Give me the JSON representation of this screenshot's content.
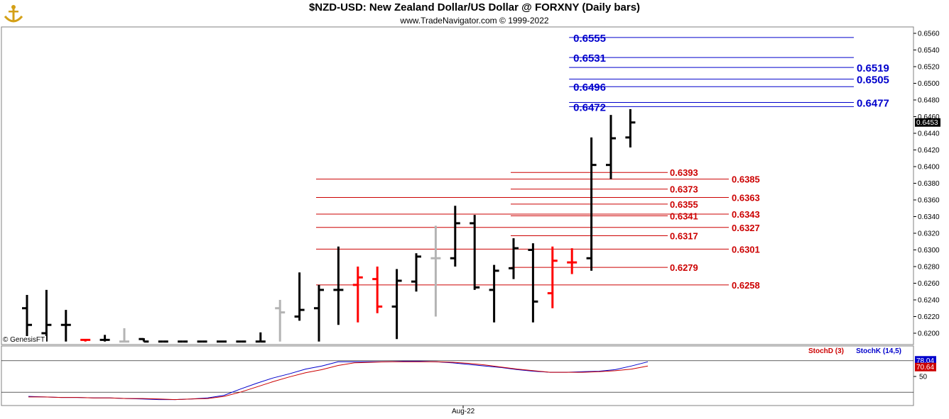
{
  "header": {
    "title": "$NZD-USD:  New Zealand Dollar/US Dollar @ FORXNY  (Daily bars)",
    "subtitle": "www.TradeNavigator.com © 1999-2022",
    "copyright": "© GenesisFT",
    "x_tick": "Aug-22"
  },
  "colors": {
    "up": "#000000",
    "down": "#ff0000",
    "neutral": "#b4b4b4",
    "resistance": "#0000cc",
    "support": "#cc0000",
    "stoch_k": "#0000cc",
    "stoch_d": "#cc0000"
  },
  "chart_data": [
    {
      "type": "ohlc",
      "title": "$NZD-USD:  New Zealand Dollar/US Dollar @ FORXNY  (Daily bars)",
      "ylim": [
        0.619,
        0.6565
      ],
      "y_ticks": [
        "0.6200",
        "0.6220",
        "0.6240",
        "0.6260",
        "0.6280",
        "0.6300",
        "0.6320",
        "0.6340",
        "0.6360",
        "0.6380",
        "0.6400",
        "0.6420",
        "0.6440",
        "0.6460",
        "0.6480",
        "0.6500",
        "0.6520",
        "0.6540",
        "0.6560"
      ],
      "last_price": "0.6453",
      "bars": [
        {
          "open": 0.623,
          "high": 0.6246,
          "low": 0.619,
          "close": 0.621,
          "color": "up"
        },
        {
          "open": 0.62,
          "high": 0.6252,
          "low": 0.619,
          "close": 0.621,
          "color": "up"
        },
        {
          "open": 0.621,
          "high": 0.6228,
          "low": 0.619,
          "close": 0.621,
          "color": "up"
        },
        {
          "open": 0.6192,
          "high": 0.6193,
          "low": 0.619,
          "close": 0.6192,
          "color": "down"
        },
        {
          "open": 0.6192,
          "high": 0.6198,
          "low": 0.619,
          "close": 0.6192,
          "color": "up"
        },
        {
          "open": 0.619,
          "high": 0.6206,
          "low": 0.619,
          "close": 0.619,
          "color": "neutral"
        },
        {
          "open": 0.6193,
          "high": 0.6194,
          "low": 0.619,
          "close": 0.619,
          "color": "up"
        },
        {
          "open": 0.619,
          "high": 0.619,
          "low": 0.619,
          "close": 0.619,
          "color": "up"
        },
        {
          "open": 0.619,
          "high": 0.619,
          "low": 0.619,
          "close": 0.619,
          "color": "up"
        },
        {
          "open": 0.619,
          "high": 0.619,
          "low": 0.619,
          "close": 0.619,
          "color": "up"
        },
        {
          "open": 0.619,
          "high": 0.619,
          "low": 0.619,
          "close": 0.619,
          "color": "up"
        },
        {
          "open": 0.619,
          "high": 0.619,
          "low": 0.619,
          "close": 0.619,
          "color": "up"
        },
        {
          "open": 0.619,
          "high": 0.6201,
          "low": 0.619,
          "close": 0.619,
          "color": "up"
        },
        {
          "open": 0.623,
          "high": 0.624,
          "low": 0.619,
          "close": 0.6225,
          "color": "neutral"
        },
        {
          "open": 0.622,
          "high": 0.6273,
          "low": 0.6215,
          "close": 0.6228,
          "color": "up"
        },
        {
          "open": 0.623,
          "high": 0.6258,
          "low": 0.619,
          "close": 0.6252,
          "color": "up"
        },
        {
          "open": 0.6252,
          "high": 0.6304,
          "low": 0.621,
          "close": 0.6252,
          "color": "up"
        },
        {
          "open": 0.6258,
          "high": 0.628,
          "low": 0.6213,
          "close": 0.6267,
          "color": "down"
        },
        {
          "open": 0.6265,
          "high": 0.628,
          "low": 0.6224,
          "close": 0.6232,
          "color": "down"
        },
        {
          "open": 0.6232,
          "high": 0.6277,
          "low": 0.6193,
          "close": 0.6263,
          "color": "up"
        },
        {
          "open": 0.6262,
          "high": 0.6296,
          "low": 0.625,
          "close": 0.6292,
          "color": "up"
        },
        {
          "open": 0.629,
          "high": 0.6329,
          "low": 0.622,
          "close": 0.629,
          "color": "neutral"
        },
        {
          "open": 0.629,
          "high": 0.6353,
          "low": 0.628,
          "close": 0.6332,
          "color": "up"
        },
        {
          "open": 0.6332,
          "high": 0.6342,
          "low": 0.6252,
          "close": 0.6255,
          "color": "up"
        },
        {
          "open": 0.6252,
          "high": 0.6282,
          "low": 0.6213,
          "close": 0.6275,
          "color": "up"
        },
        {
          "open": 0.6278,
          "high": 0.6314,
          "low": 0.6265,
          "close": 0.6302,
          "color": "up"
        },
        {
          "open": 0.63,
          "high": 0.6308,
          "low": 0.6213,
          "close": 0.6238,
          "color": "up"
        },
        {
          "open": 0.6248,
          "high": 0.6304,
          "low": 0.623,
          "close": 0.6287,
          "color": "down"
        },
        {
          "open": 0.6285,
          "high": 0.6302,
          "low": 0.6271,
          "close": 0.6285,
          "color": "down"
        },
        {
          "open": 0.629,
          "high": 0.6435,
          "low": 0.6275,
          "close": 0.6402,
          "color": "up"
        },
        {
          "open": 0.6402,
          "high": 0.6462,
          "low": 0.6385,
          "close": 0.6434,
          "color": "up"
        },
        {
          "open": 0.6435,
          "high": 0.6469,
          "low": 0.6423,
          "close": 0.6453,
          "color": "up"
        }
      ],
      "levels": [
        {
          "value": 0.6555,
          "label": "0.6555",
          "color": "resistance",
          "side": "left",
          "from_bar": 28
        },
        {
          "value": 0.6531,
          "label": "0.6531",
          "color": "resistance",
          "side": "left",
          "from_bar": 28
        },
        {
          "value": 0.6519,
          "label": "0.6519",
          "color": "resistance",
          "side": "right",
          "from_bar": 28
        },
        {
          "value": 0.6505,
          "label": "0.6505",
          "color": "resistance",
          "side": "right",
          "from_bar": 28
        },
        {
          "value": 0.6496,
          "label": "0.6496",
          "color": "resistance",
          "side": "left",
          "from_bar": 28
        },
        {
          "value": 0.6477,
          "label": "0.6477",
          "color": "resistance",
          "side": "right",
          "from_bar": 28
        },
        {
          "value": 0.6472,
          "label": "0.6472",
          "color": "resistance",
          "side": "left",
          "from_bar": 28
        },
        {
          "value": 0.6393,
          "label": "0.6393",
          "color": "support",
          "side": "left",
          "from_bar": 25
        },
        {
          "value": 0.6385,
          "label": "0.6385",
          "color": "support",
          "side": "right",
          "from_bar": 15
        },
        {
          "value": 0.6373,
          "label": "0.6373",
          "color": "support",
          "side": "left",
          "from_bar": 25
        },
        {
          "value": 0.6363,
          "label": "0.6363",
          "color": "support",
          "side": "right",
          "from_bar": 15
        },
        {
          "value": 0.6355,
          "label": "0.6355",
          "color": "support",
          "side": "left",
          "from_bar": 25
        },
        {
          "value": 0.6343,
          "label": "0.6343",
          "color": "support",
          "side": "right",
          "from_bar": 15
        },
        {
          "value": 0.6341,
          "label": "0.6341",
          "color": "support",
          "side": "left",
          "from_bar": 25
        },
        {
          "value": 0.6327,
          "label": "0.6327",
          "color": "support",
          "side": "right",
          "from_bar": 15
        },
        {
          "value": 0.6317,
          "label": "0.6317",
          "color": "support",
          "side": "left",
          "from_bar": 25
        },
        {
          "value": 0.6301,
          "label": "0.6301",
          "color": "support",
          "side": "right",
          "from_bar": 15
        },
        {
          "value": 0.6279,
          "label": "0.6279",
          "color": "support",
          "side": "left",
          "from_bar": 25
        },
        {
          "value": 0.6258,
          "label": "0.6258",
          "color": "support",
          "side": "right",
          "from_bar": 15
        }
      ]
    },
    {
      "type": "line",
      "title": "Stochastic",
      "ylim": [
        0,
        100
      ],
      "y_ticks": [
        "50"
      ],
      "reference_lines": [
        80,
        20
      ],
      "series": [
        {
          "name": "StochK (14,5)",
          "color": "stoch_k",
          "last": "78.04",
          "values": [
            12,
            11,
            10,
            10,
            9,
            9,
            8,
            7,
            6,
            6,
            7,
            9,
            14,
            26,
            37,
            47,
            55,
            64,
            70,
            78,
            78,
            78,
            78,
            79,
            79,
            78,
            76,
            73,
            70,
            67,
            63,
            60,
            58,
            58,
            59,
            60,
            63,
            70,
            78
          ]
        },
        {
          "name": "StochD (3)",
          "color": "stoch_d",
          "last": "70.64",
          "values": [
            11,
            11,
            10,
            10,
            9,
            9,
            8,
            8,
            7,
            6,
            7,
            8,
            12,
            20,
            30,
            40,
            49,
            57,
            63,
            71,
            76,
            77,
            78,
            78,
            78,
            78,
            77,
            75,
            72,
            68,
            64,
            61,
            58,
            58,
            58,
            59,
            61,
            64,
            70
          ]
        }
      ]
    }
  ]
}
